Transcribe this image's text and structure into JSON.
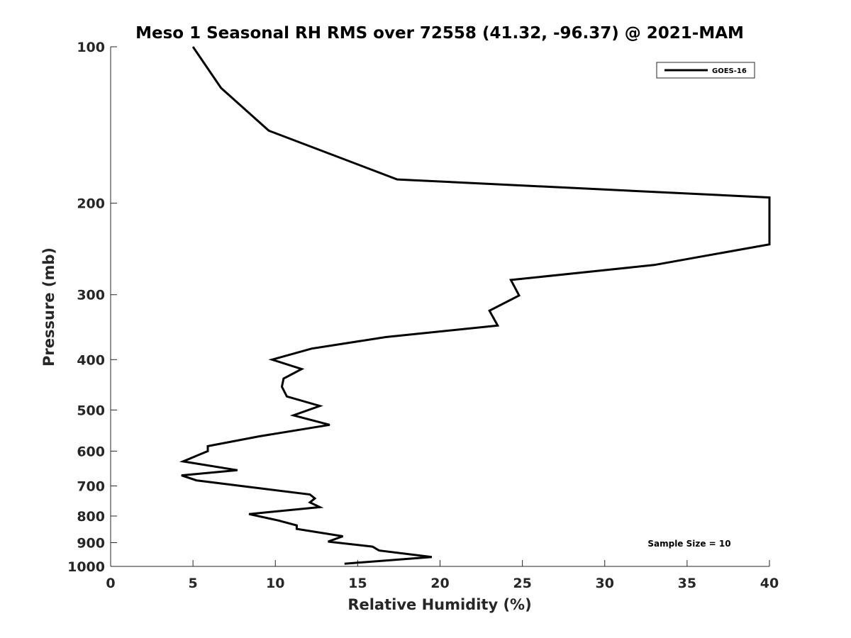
{
  "chart_data": {
    "type": "line",
    "title": "Meso 1 Seasonal RH RMS over 72558 (41.32, -96.37) @ 2021-MAM",
    "xlabel": "Relative Humidity (%)",
    "ylabel": "Pressure (mb)",
    "xlim": [
      0,
      40
    ],
    "ylim": [
      100,
      1000
    ],
    "y_scale": "log",
    "y_reversed": true,
    "x_ticks": [
      "0",
      "5",
      "10",
      "15",
      "20",
      "25",
      "30",
      "35",
      "40"
    ],
    "y_ticks": [
      "100",
      "200",
      "300",
      "400",
      "500",
      "600",
      "700",
      "800",
      "900",
      "1000"
    ],
    "grid": false,
    "legend_position": "top-right",
    "annotation": "Sample Size = 10",
    "series": [
      {
        "name": "GOES-16",
        "color": "#000000",
        "points": [
          [
            5.0,
            100
          ],
          [
            6.7,
            120
          ],
          [
            9.6,
            145
          ],
          [
            17.4,
            180
          ],
          [
            40.0,
            195
          ],
          [
            40.0,
            240
          ],
          [
            33.0,
            263
          ],
          [
            24.3,
            281
          ],
          [
            24.8,
            301
          ],
          [
            23.0,
            322
          ],
          [
            23.5,
            344
          ],
          [
            16.7,
            362
          ],
          [
            12.2,
            381
          ],
          [
            9.8,
            400
          ],
          [
            11.6,
            417
          ],
          [
            10.5,
            435
          ],
          [
            10.4,
            451
          ],
          [
            10.7,
            471
          ],
          [
            12.7,
            491
          ],
          [
            11.1,
            512
          ],
          [
            13.3,
            534
          ],
          [
            9.0,
            562
          ],
          [
            5.9,
            587
          ],
          [
            5.9,
            600
          ],
          [
            4.4,
            628
          ],
          [
            7.7,
            653
          ],
          [
            4.3,
            668
          ],
          [
            5.2,
            683
          ],
          [
            9.0,
            707
          ],
          [
            12.1,
            727
          ],
          [
            12.4,
            740
          ],
          [
            12.1,
            753
          ],
          [
            12.7,
            769
          ],
          [
            8.4,
            793
          ],
          [
            10.2,
            816
          ],
          [
            11.3,
            834
          ],
          [
            11.3,
            847
          ],
          [
            14.1,
            875
          ],
          [
            13.2,
            896
          ],
          [
            15.9,
            916
          ],
          [
            16.3,
            932
          ],
          [
            19.5,
            959
          ],
          [
            14.2,
            988
          ]
        ]
      }
    ]
  }
}
